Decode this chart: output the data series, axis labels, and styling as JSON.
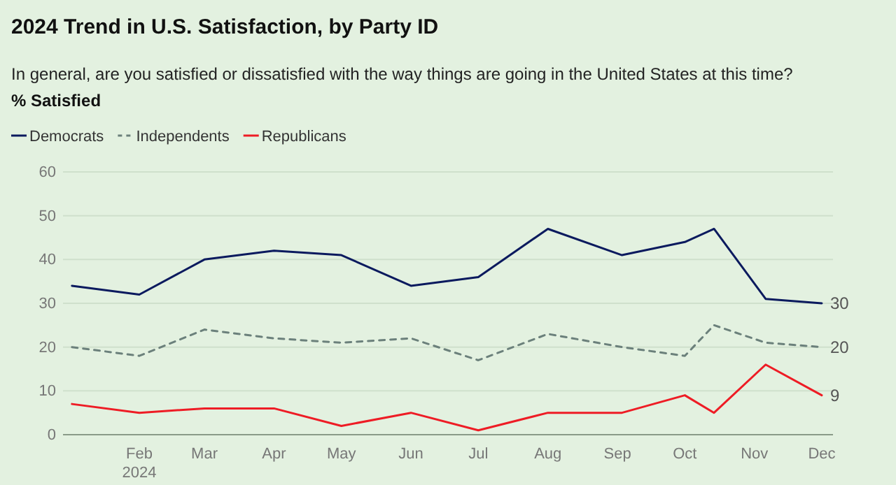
{
  "chart_data": {
    "type": "line",
    "title": "2024 Trend in U.S. Satisfaction, by Party ID",
    "subtitle": "In general, are you satisfied or dissatisfied with the way things are going in the United States at this time?",
    "ylabel": "% Satisfied",
    "x": [
      "2024-01-02",
      "2024-02-01",
      "2024-03-01",
      "2024-04-01",
      "2024-05-01",
      "2024-06-01",
      "2024-07-01",
      "2024-08-01",
      "2024-09-03",
      "2024-10-01",
      "2024-10-14",
      "2024-11-06",
      "2024-12-01"
    ],
    "series": [
      {
        "name": "Democrats",
        "color": "#0b1a5e",
        "line_style": "solid",
        "values": [
          34,
          32,
          40,
          42,
          41,
          34,
          36,
          47,
          41,
          44,
          47,
          31,
          30
        ],
        "value_labels": [
          null,
          null,
          null,
          null,
          null,
          null,
          null,
          null,
          null,
          null,
          null,
          null,
          "30"
        ]
      },
      {
        "name": "Independents",
        "color": "#6b807b",
        "line_style": "dashed",
        "values": [
          20,
          18,
          24,
          22,
          21,
          22,
          17,
          23,
          20,
          18,
          25,
          21,
          20
        ],
        "value_labels": [
          null,
          null,
          null,
          null,
          null,
          null,
          null,
          null,
          null,
          null,
          null,
          null,
          "20"
        ]
      },
      {
        "name": "Republicans",
        "color": "#ee1c25",
        "line_style": "solid",
        "values": [
          7,
          5,
          6,
          6,
          2,
          5,
          1,
          5,
          5,
          9,
          5,
          16,
          9
        ],
        "value_labels": [
          null,
          null,
          null,
          null,
          null,
          null,
          null,
          null,
          null,
          null,
          null,
          null,
          "9"
        ]
      }
    ],
    "xlim": [
      "2023-12-29",
      "2024-12-06"
    ],
    "xticks": [
      {
        "value": "2024-02-01",
        "label": "Feb\n2024"
      },
      {
        "value": "2024-03-01",
        "label": "Mar"
      },
      {
        "value": "2024-04-01",
        "label": "Apr"
      },
      {
        "value": "2024-05-01",
        "label": "May"
      },
      {
        "value": "2024-06-01",
        "label": "Jun"
      },
      {
        "value": "2024-07-01",
        "label": "Jul"
      },
      {
        "value": "2024-08-01",
        "label": "Aug"
      },
      {
        "value": "2024-09-01",
        "label": "Sep"
      },
      {
        "value": "2024-10-01",
        "label": "Oct"
      },
      {
        "value": "2024-11-01",
        "label": "Nov"
      },
      {
        "value": "2024-12-01",
        "label": "Dec"
      }
    ],
    "ylim": [
      0,
      60
    ],
    "yticks": [
      0,
      10,
      20,
      30,
      40,
      50,
      60
    ],
    "grid": "y",
    "legend": "top left",
    "marker": "none"
  }
}
